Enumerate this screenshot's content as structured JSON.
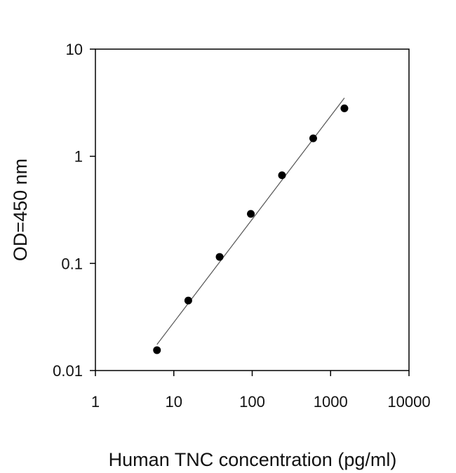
{
  "chart_data": {
    "type": "scatter",
    "title": "",
    "xlabel": "Human TNC concentration (pg/ml)",
    "ylabel": "OD=450 nm",
    "x_scale": "log",
    "y_scale": "log",
    "xlim": [
      1,
      10000
    ],
    "ylim": [
      0.01,
      10
    ],
    "x_ticks": [
      1,
      10,
      100,
      1000,
      10000
    ],
    "x_tick_labels": [
      "1",
      "10",
      "100",
      "1000",
      "10000"
    ],
    "y_ticks": [
      0.01,
      0.1,
      1,
      10
    ],
    "y_tick_labels": [
      "0.01",
      "0.1",
      "1",
      "10"
    ],
    "grid": false,
    "legend": "none",
    "series": [
      {
        "x": [
          6.1,
          15.3,
          38.4,
          96,
          240,
          600,
          1500
        ],
        "y": [
          0.0155,
          0.045,
          0.115,
          0.29,
          0.665,
          1.47,
          2.8
        ],
        "marker_color": "#000000"
      }
    ],
    "fit_line": {
      "x": [
        6.1,
        1500
      ],
      "y": [
        0.0175,
        3.5
      ],
      "color": "#555555"
    }
  }
}
